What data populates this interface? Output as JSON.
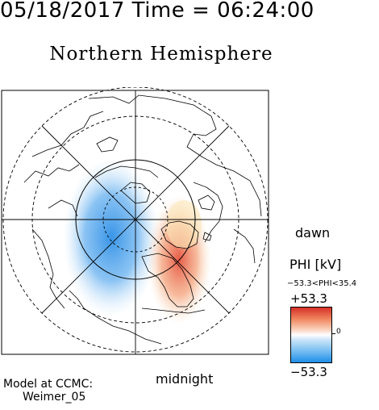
{
  "header": {
    "timestamp": "05/18/2017 Time = 06:24:00"
  },
  "title": "Northern Hemisphere",
  "orientation": {
    "right_label": "dawn",
    "bottom_label": "midnight"
  },
  "legend": {
    "quantity": "PHI [kV]",
    "range_text": "−53.3<PHI<35.4",
    "max_label": "+53.3",
    "min_label": "−53.3",
    "zero_label": "0",
    "colors": {
      "high": "#d73027",
      "mid": "#ffffff",
      "low": "#1e8fe8"
    }
  },
  "credit": {
    "line1": "Model at CCMC:",
    "line2": "Weimer_05"
  },
  "map": {
    "projection": "polar",
    "dashed_latitude_rings": 3,
    "colors": {
      "positive_cell": "#e34a33",
      "negative_cell": "#2e8fe6"
    }
  }
}
